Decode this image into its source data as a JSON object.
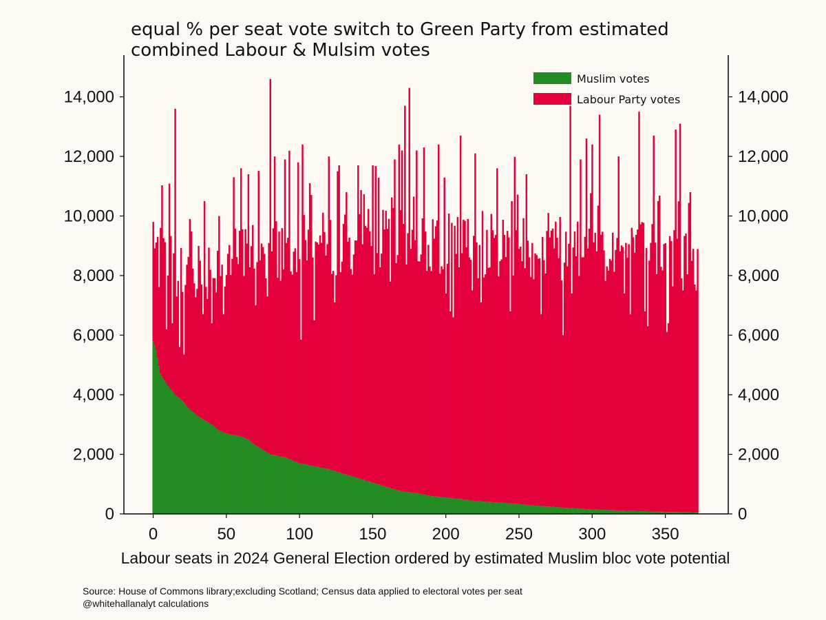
{
  "chart_data": {
    "type": "bar",
    "stacked": true,
    "title_lines": [
      "equal % per seat vote switch to Green Party from estimated",
      "combined Labour & Mulsim votes"
    ],
    "xlabel": "Labour seats in 2024 General Election ordered by estimated Muslim bloc vote potential",
    "ylabel": "",
    "xlim": [
      -20,
      393
    ],
    "ylim": [
      0,
      15400
    ],
    "xticks": [
      0,
      50,
      100,
      150,
      200,
      250,
      300,
      350
    ],
    "yticks": [
      0,
      2000,
      4000,
      6000,
      8000,
      10000,
      12000,
      14000
    ],
    "ytick_labels": [
      "0",
      "2,000",
      "4,000",
      "6,000",
      "8,000",
      "10,000",
      "12,000",
      "14,000"
    ],
    "right_axis": true,
    "legend_position": "top-right",
    "seat_count": 373,
    "series": [
      {
        "name": "Muslim votes",
        "color": "#228b22",
        "anchors": [
          [
            0,
            5800
          ],
          [
            2,
            5500
          ],
          [
            5,
            4700
          ],
          [
            10,
            4300
          ],
          [
            15,
            4000
          ],
          [
            20,
            3800
          ],
          [
            25,
            3500
          ],
          [
            30,
            3300
          ],
          [
            35,
            3150
          ],
          [
            40,
            3000
          ],
          [
            45,
            2800
          ],
          [
            50,
            2700
          ],
          [
            60,
            2600
          ],
          [
            65,
            2500
          ],
          [
            70,
            2300
          ],
          [
            80,
            2000
          ],
          [
            90,
            1900
          ],
          [
            100,
            1700
          ],
          [
            110,
            1600
          ],
          [
            120,
            1500
          ],
          [
            130,
            1350
          ],
          [
            140,
            1200
          ],
          [
            150,
            1050
          ],
          [
            160,
            900
          ],
          [
            170,
            750
          ],
          [
            180,
            700
          ],
          [
            190,
            600
          ],
          [
            200,
            550
          ],
          [
            210,
            500
          ],
          [
            220,
            430
          ],
          [
            230,
            400
          ],
          [
            240,
            370
          ],
          [
            250,
            330
          ],
          [
            260,
            280
          ],
          [
            270,
            250
          ],
          [
            280,
            210
          ],
          [
            290,
            180
          ],
          [
            300,
            150
          ],
          [
            320,
            110
          ],
          [
            340,
            80
          ],
          [
            360,
            60
          ],
          [
            372,
            40
          ]
        ],
        "dips": [
          [
            101,
            5850
          ]
        ]
      },
      {
        "name": "Labour Party votes",
        "color": "#e3003b",
        "total_baseline_anchors": [
          [
            0,
            8800
          ],
          [
            10,
            7900
          ],
          [
            20,
            8000
          ],
          [
            30,
            8100
          ],
          [
            50,
            8400
          ],
          [
            70,
            8700
          ],
          [
            90,
            8800
          ],
          [
            110,
            8900
          ],
          [
            130,
            9000
          ],
          [
            150,
            9000
          ],
          [
            170,
            9100
          ],
          [
            190,
            9000
          ],
          [
            210,
            8900
          ],
          [
            230,
            8900
          ],
          [
            250,
            8900
          ],
          [
            270,
            8800
          ],
          [
            290,
            8700
          ],
          [
            310,
            8700
          ],
          [
            330,
            8700
          ],
          [
            350,
            8600
          ],
          [
            372,
            8300
          ]
        ],
        "peaks": [
          [
            0,
            9800
          ],
          [
            3,
            9300
          ],
          [
            5,
            9600
          ],
          [
            15,
            13600
          ],
          [
            25,
            9900
          ],
          [
            35,
            10500
          ],
          [
            45,
            10000
          ],
          [
            55,
            11300
          ],
          [
            60,
            11600
          ],
          [
            65,
            11400
          ],
          [
            70,
            10400
          ],
          [
            80,
            14600
          ],
          [
            83,
            12000
          ],
          [
            90,
            11900
          ],
          [
            99,
            11800
          ],
          [
            102,
            12400
          ],
          [
            107,
            11100
          ],
          [
            120,
            12000
          ],
          [
            127,
            11700
          ],
          [
            132,
            10800
          ],
          [
            140,
            11700
          ],
          [
            150,
            11700
          ],
          [
            165,
            11900
          ],
          [
            168,
            12400
          ],
          [
            170,
            12200
          ],
          [
            172,
            13700
          ],
          [
            175,
            14300
          ],
          [
            180,
            12200
          ],
          [
            185,
            12300
          ],
          [
            195,
            12400
          ],
          [
            210,
            12700
          ],
          [
            220,
            12100
          ],
          [
            235,
            11600
          ],
          [
            245,
            10500
          ],
          [
            255,
            11400
          ],
          [
            270,
            10100
          ],
          [
            285,
            13700
          ],
          [
            292,
            11900
          ],
          [
            296,
            12600
          ],
          [
            300,
            12400
          ],
          [
            305,
            13400
          ],
          [
            318,
            12000
          ],
          [
            332,
            13500
          ],
          [
            342,
            12700
          ],
          [
            357,
            12900
          ],
          [
            360,
            13100
          ],
          [
            367,
            10800
          ]
        ],
        "dips": [
          [
            9,
            6200
          ],
          [
            13,
            6400
          ],
          [
            18,
            5600
          ],
          [
            21,
            5350
          ],
          [
            34,
            6700
          ],
          [
            40,
            6400
          ],
          [
            48,
            6700
          ],
          [
            70,
            7000
          ],
          [
            78,
            7300
          ],
          [
            101,
            5850
          ],
          [
            110,
            6500
          ],
          [
            124,
            7100
          ],
          [
            162,
            7800
          ],
          [
            200,
            7400
          ],
          [
            203,
            6800
          ],
          [
            205,
            6600
          ],
          [
            218,
            7500
          ],
          [
            224,
            7100
          ],
          [
            244,
            6800
          ],
          [
            265,
            6700
          ],
          [
            280,
            6000
          ],
          [
            286,
            7400
          ],
          [
            322,
            7400
          ],
          [
            326,
            6700
          ],
          [
            336,
            6800
          ],
          [
            338,
            6300
          ],
          [
            351,
            6100
          ],
          [
            352,
            6400
          ],
          [
            362,
            7500
          ],
          [
            370,
            7700
          ]
        ]
      }
    ]
  },
  "legend": [
    {
      "label": "Muslim votes",
      "color": "#228b22"
    },
    {
      "label": "Labour Party votes",
      "color": "#e3003b"
    }
  ],
  "source_lines": [
    "Source: House of Commons library;excluding Scotland; Census data applied to electoral votes per seat",
    "@whitehallanalyt calculations"
  ]
}
